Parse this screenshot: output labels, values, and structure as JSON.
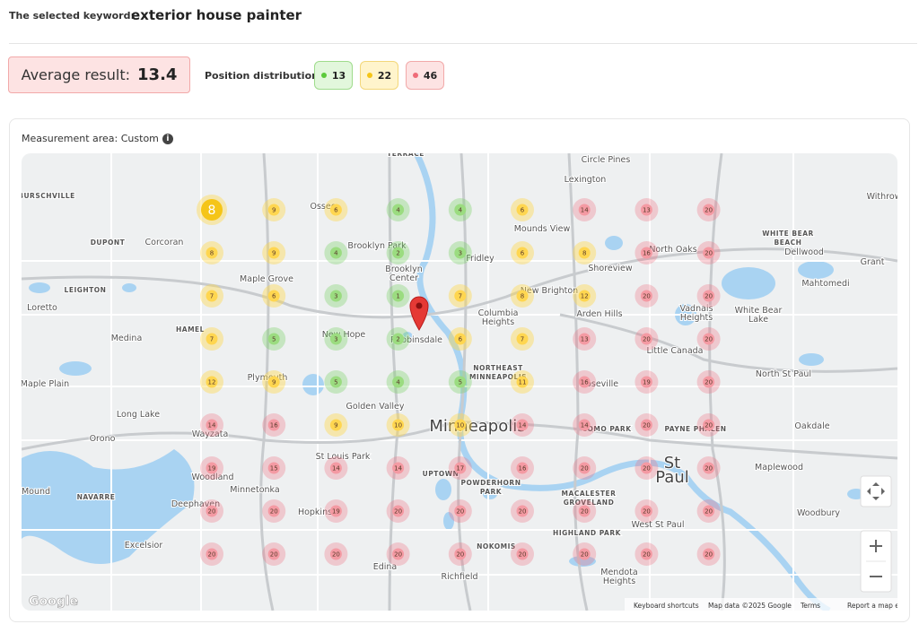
{
  "header": {
    "keyword_label": "The selected keyword:",
    "keyword": "exterior house painter"
  },
  "summary": {
    "average_label": "Average result:",
    "average": 13.4,
    "distribution_label": "Position distribution:",
    "distribution": [
      {
        "color": "green",
        "value": 13
      },
      {
        "color": "yellow",
        "value": 22
      },
      {
        "color": "red",
        "value": 46
      }
    ]
  },
  "map": {
    "area_label": "Measurement area: Custom",
    "grid": {
      "rows": [
        [
          8,
          9,
          6,
          4,
          4,
          6,
          14,
          13,
          20
        ],
        [
          8,
          9,
          4,
          2,
          3,
          6,
          8,
          16,
          20
        ],
        [
          7,
          6,
          3,
          1,
          7,
          8,
          12,
          20,
          20
        ],
        [
          7,
          5,
          3,
          2,
          6,
          7,
          13,
          20,
          20
        ],
        [
          12,
          9,
          5,
          4,
          5,
          11,
          16,
          19,
          20
        ],
        [
          14,
          16,
          9,
          10,
          10,
          14,
          14,
          20,
          20
        ],
        [
          19,
          15,
          14,
          14,
          17,
          16,
          20,
          20,
          20
        ],
        [
          20,
          20,
          19,
          20,
          20,
          20,
          20,
          20,
          20
        ],
        [
          20,
          20,
          20,
          20,
          20,
          20,
          20,
          20,
          20
        ]
      ],
      "colors": [
        [
          "yellow",
          "yellow",
          "yellow",
          "green",
          "green",
          "yellow",
          "red",
          "red",
          "red"
        ],
        [
          "yellow",
          "yellow",
          "green",
          "green",
          "green",
          "yellow",
          "yellow",
          "red",
          "red"
        ],
        [
          "yellow",
          "yellow",
          "green",
          "green",
          "yellow",
          "yellow",
          "yellow",
          "red",
          "red"
        ],
        [
          "yellow",
          "green",
          "green",
          "green",
          "yellow",
          "yellow",
          "red",
          "red",
          "red"
        ],
        [
          "yellow",
          "yellow",
          "green",
          "green",
          "green",
          "yellow",
          "red",
          "red",
          "red"
        ],
        [
          "red",
          "red",
          "yellow",
          "yellow",
          "yellow",
          "red",
          "red",
          "red",
          "red"
        ],
        [
          "red",
          "red",
          "red",
          "red",
          "red",
          "red",
          "red",
          "red",
          "red"
        ],
        [
          "red",
          "red",
          "red",
          "red",
          "red",
          "red",
          "red",
          "red",
          "red"
        ],
        [
          "red",
          "red",
          "red",
          "red",
          "red",
          "red",
          "red",
          "red",
          "red"
        ]
      ]
    },
    "labels": [
      "TERRACE",
      "Circle Pines",
      "Lexington",
      "BURSCHVILLE",
      "Withrow",
      "Osseo",
      "Mounds View",
      "Brooklyn Park",
      "WHITE BEAR BEACH",
      "DUPONT",
      "Corcoran",
      "North Oaks",
      "Dellwood",
      "Fridley",
      "Shoreview",
      "Grant",
      "Brooklyn Center",
      "Maple Grove",
      "LEIGHTON",
      "New Brighton",
      "Mahtomedi",
      "Loretto",
      "Columbia Heights",
      "Arden Hills",
      "Vadnais Heights",
      "White Bear Lake",
      "HAMEL",
      "Medina",
      "New Hope",
      "Robbinsdale",
      "Little Canada",
      "Maple Plain",
      "Plymouth",
      "NORTHEAST MINNEAPOLIS",
      "Roseville",
      "North St Paul",
      "Long Lake",
      "Golden Valley",
      "Minneapolis",
      "COMO PARK",
      "PAYNE PHALEN",
      "Oakdale",
      "Orono",
      "Wayzata",
      "St Louis Park",
      "St Paul",
      "Maplewood",
      "Woodland",
      "UPTOWN",
      "POWDERHORN PARK",
      "Minnetonka",
      "MACALESTER GROVELAND",
      "Mound",
      "NAVARRE",
      "Deephaven",
      "Hopkins",
      "Woodbury",
      "West St Paul",
      "HIGHLAND PARK",
      "Excelsior",
      "NOKOMIS",
      "Edina",
      "Mendota Heights",
      "Richfield"
    ],
    "logo": "Google",
    "footer": [
      "Keyboard shortcuts",
      "Map data ©2025 Google",
      "Terms",
      "Report a map error"
    ]
  }
}
